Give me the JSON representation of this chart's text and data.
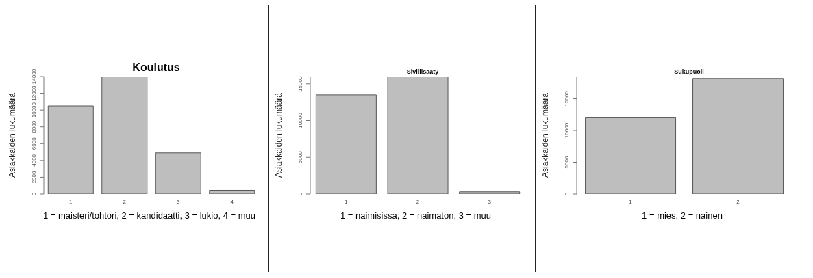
{
  "chart_data": [
    {
      "type": "bar",
      "title": "Koulutus",
      "ylabel": "Asiakkaiden lukumäärä",
      "xlabel": "1 = maisteri/tohtori, 2 =  kandidaatti, 3 = lukio, 4 = muu",
      "categories": [
        "1",
        "2",
        "3",
        "4"
      ],
      "values": [
        10500,
        14000,
        4900,
        450
      ],
      "color": "#bebebe",
      "ylim": [
        0,
        14000
      ],
      "yticks": [
        0,
        2000,
        4000,
        6000,
        8000,
        10000,
        12000,
        14000
      ]
    },
    {
      "type": "bar",
      "title": "Siviilisääty",
      "ylabel": "Asiakkaiden lukumäärä",
      "xlabel": "1 = naimisissa, 2 = naimaton, 3 = muu",
      "categories": [
        "1",
        "2",
        "3"
      ],
      "values": [
        13500,
        16000,
        300
      ],
      "color": "#bebebe",
      "ylim": [
        0,
        16000
      ],
      "yticks": [
        0,
        5000,
        10000,
        15000
      ]
    },
    {
      "type": "bar",
      "title": "Sukupuoli",
      "ylabel": "Asiakkaiden lukumäärä",
      "xlabel": "1 = mies, 2 = nainen",
      "categories": [
        "1",
        "2"
      ],
      "values": [
        12000,
        18200
      ],
      "color": "#bebebe",
      "ylim": [
        0,
        18500
      ],
      "yticks": [
        0,
        5000,
        10000,
        15000
      ]
    }
  ]
}
